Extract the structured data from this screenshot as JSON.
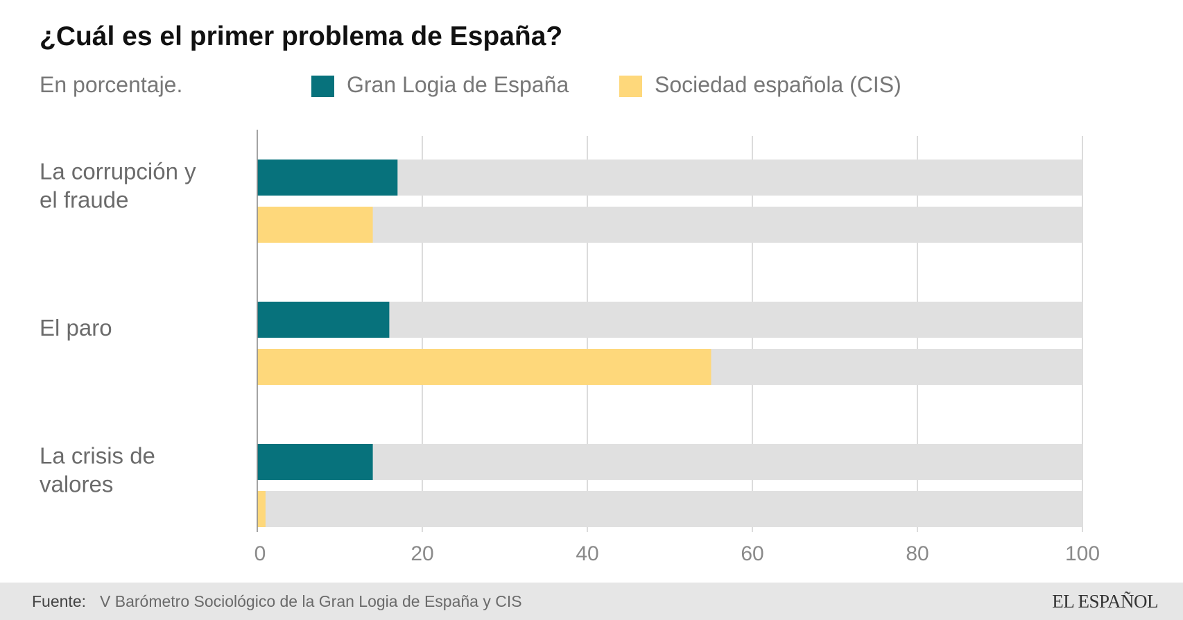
{
  "chart_data": {
    "type": "bar",
    "orientation": "horizontal",
    "title": "¿Cuál es el primer problema de España?",
    "subtitle": "En porcentaje.",
    "categories": [
      [
        "La corrupción y",
        "el fraude"
      ],
      [
        "El paro"
      ],
      [
        "La crisis de",
        "valores"
      ]
    ],
    "series": [
      {
        "name": "Gran Logia de España",
        "color": "#07727c",
        "values": [
          17,
          16,
          14
        ]
      },
      {
        "name": "Sociedad española (CIS)",
        "color": "#fed87b",
        "values": [
          14,
          55,
          1
        ]
      }
    ],
    "xlim": [
      0,
      100
    ],
    "xticks": [
      0,
      20,
      40,
      60,
      80,
      100
    ],
    "grid": true,
    "track_color": "#e0e0e0",
    "legend_position": "top"
  },
  "footer": {
    "source_label": "Fuente:",
    "source_text": "V Barómetro Sociológico de la Gran Logia de España y CIS",
    "logo": "EL ESPAÑOL"
  }
}
